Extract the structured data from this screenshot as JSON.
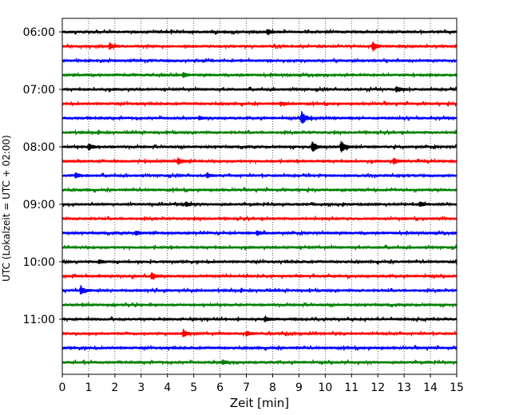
{
  "chart_data": {
    "type": "line",
    "title": "",
    "xlabel": "Zeit  [min]",
    "ylabel": "UTC (Lokalzeit = UTC + 02:00)",
    "xlim": [
      0,
      15
    ],
    "xticks": [
      0,
      1,
      2,
      3,
      4,
      5,
      6,
      7,
      8,
      9,
      10,
      11,
      12,
      13,
      14,
      15
    ],
    "xtick_labels": [
      "0",
      "1",
      "2",
      "3",
      "4",
      "5",
      "6",
      "7",
      "8",
      "9",
      "10",
      "11",
      "12",
      "13",
      "14",
      "15"
    ],
    "ytick_labels": [
      "06:00",
      "07:00",
      "08:00",
      "09:00",
      "10:00",
      "11:00"
    ],
    "ytick_traces": [
      0,
      4,
      8,
      12,
      16,
      20
    ],
    "trace_count": 24,
    "trace_minutes": 15,
    "color_cycle": [
      "#000000",
      "#ff0000",
      "#0000ff",
      "#008000"
    ],
    "grid": "vertical dotted",
    "legend": "none",
    "events": [
      {
        "trace": 0,
        "x": 7.8,
        "amp": 0.45
      },
      {
        "trace": 1,
        "x": 1.8,
        "amp": 0.55
      },
      {
        "trace": 1,
        "x": 11.8,
        "amp": 0.9
      },
      {
        "trace": 3,
        "x": 4.6,
        "amp": 0.5
      },
      {
        "trace": 4,
        "x": 12.7,
        "amp": 0.55
      },
      {
        "trace": 5,
        "x": 8.3,
        "amp": 0.35
      },
      {
        "trace": 6,
        "x": 9.1,
        "amp": 1.4
      },
      {
        "trace": 6,
        "x": 5.2,
        "amp": 0.3
      },
      {
        "trace": 8,
        "x": 1.0,
        "amp": 0.6
      },
      {
        "trace": 8,
        "x": 9.5,
        "amp": 1.1
      },
      {
        "trace": 8,
        "x": 10.6,
        "amp": 1.2
      },
      {
        "trace": 9,
        "x": 4.4,
        "amp": 0.6
      },
      {
        "trace": 9,
        "x": 12.6,
        "amp": 0.55
      },
      {
        "trace": 10,
        "x": 0.5,
        "amp": 0.45
      },
      {
        "trace": 10,
        "x": 5.5,
        "amp": 0.35
      },
      {
        "trace": 12,
        "x": 4.7,
        "amp": 0.4
      },
      {
        "trace": 12,
        "x": 13.6,
        "amp": 0.45
      },
      {
        "trace": 14,
        "x": 2.8,
        "amp": 0.45
      },
      {
        "trace": 14,
        "x": 7.4,
        "amp": 0.4
      },
      {
        "trace": 16,
        "x": 1.4,
        "amp": 0.35
      },
      {
        "trace": 17,
        "x": 3.4,
        "amp": 0.6
      },
      {
        "trace": 18,
        "x": 0.7,
        "amp": 0.75
      },
      {
        "trace": 20,
        "x": 7.7,
        "amp": 0.45
      },
      {
        "trace": 21,
        "x": 4.6,
        "amp": 0.7
      },
      {
        "trace": 21,
        "x": 7.0,
        "amp": 0.45
      },
      {
        "trace": 23,
        "x": 6.1,
        "amp": 0.4
      }
    ]
  }
}
